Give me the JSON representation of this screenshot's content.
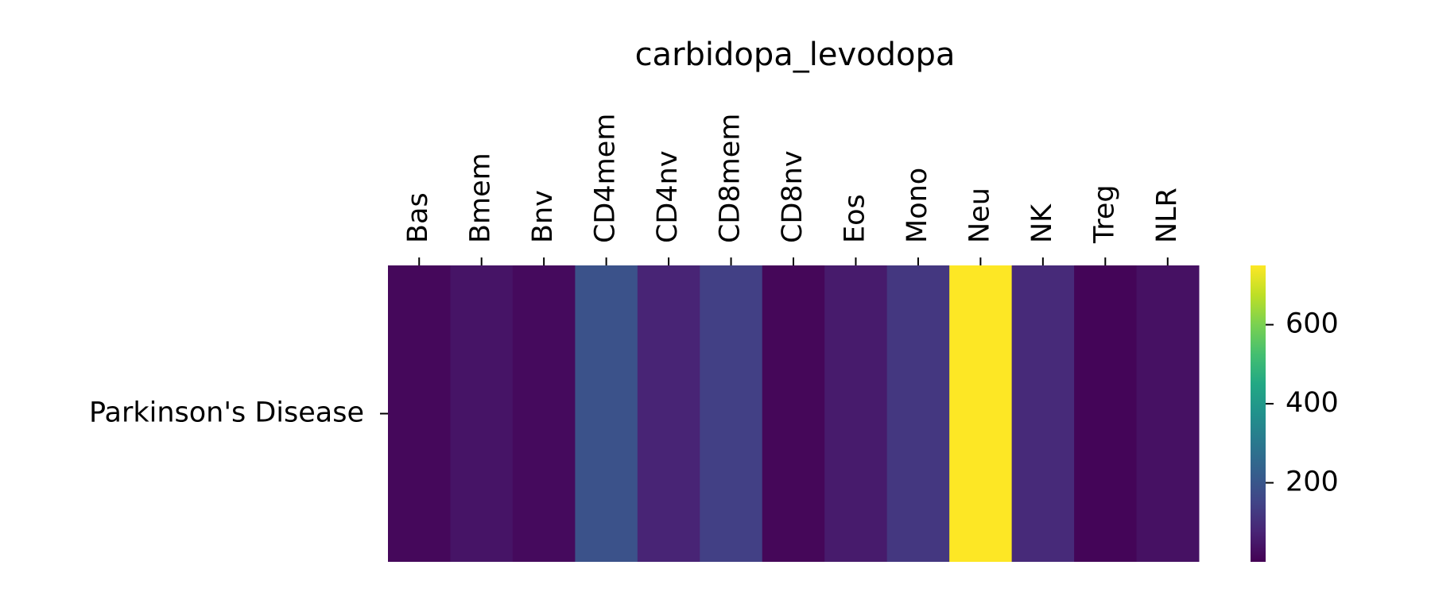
{
  "chart_data": {
    "type": "heatmap",
    "title": "carbidopa_levodopa",
    "x_categories": [
      "Bas",
      "Bmem",
      "Bnv",
      "CD4mem",
      "CD4nv",
      "CD8mem",
      "CD8nv",
      "Eos",
      "Mono",
      "Neu",
      "NK",
      "Treg",
      "NLR"
    ],
    "y_categories": [
      "Parkinson's Disease"
    ],
    "values": [
      [
        15,
        40,
        20,
        190,
        75,
        140,
        12,
        55,
        120,
        750,
        90,
        8,
        35
      ]
    ],
    "colormap": "viridis",
    "colorbar": {
      "range": [
        0,
        750
      ],
      "ticks": [
        200,
        400,
        600
      ],
      "tick_labels": [
        "200",
        "400",
        "600"
      ]
    },
    "x_tick_position": "top",
    "grid": false
  }
}
